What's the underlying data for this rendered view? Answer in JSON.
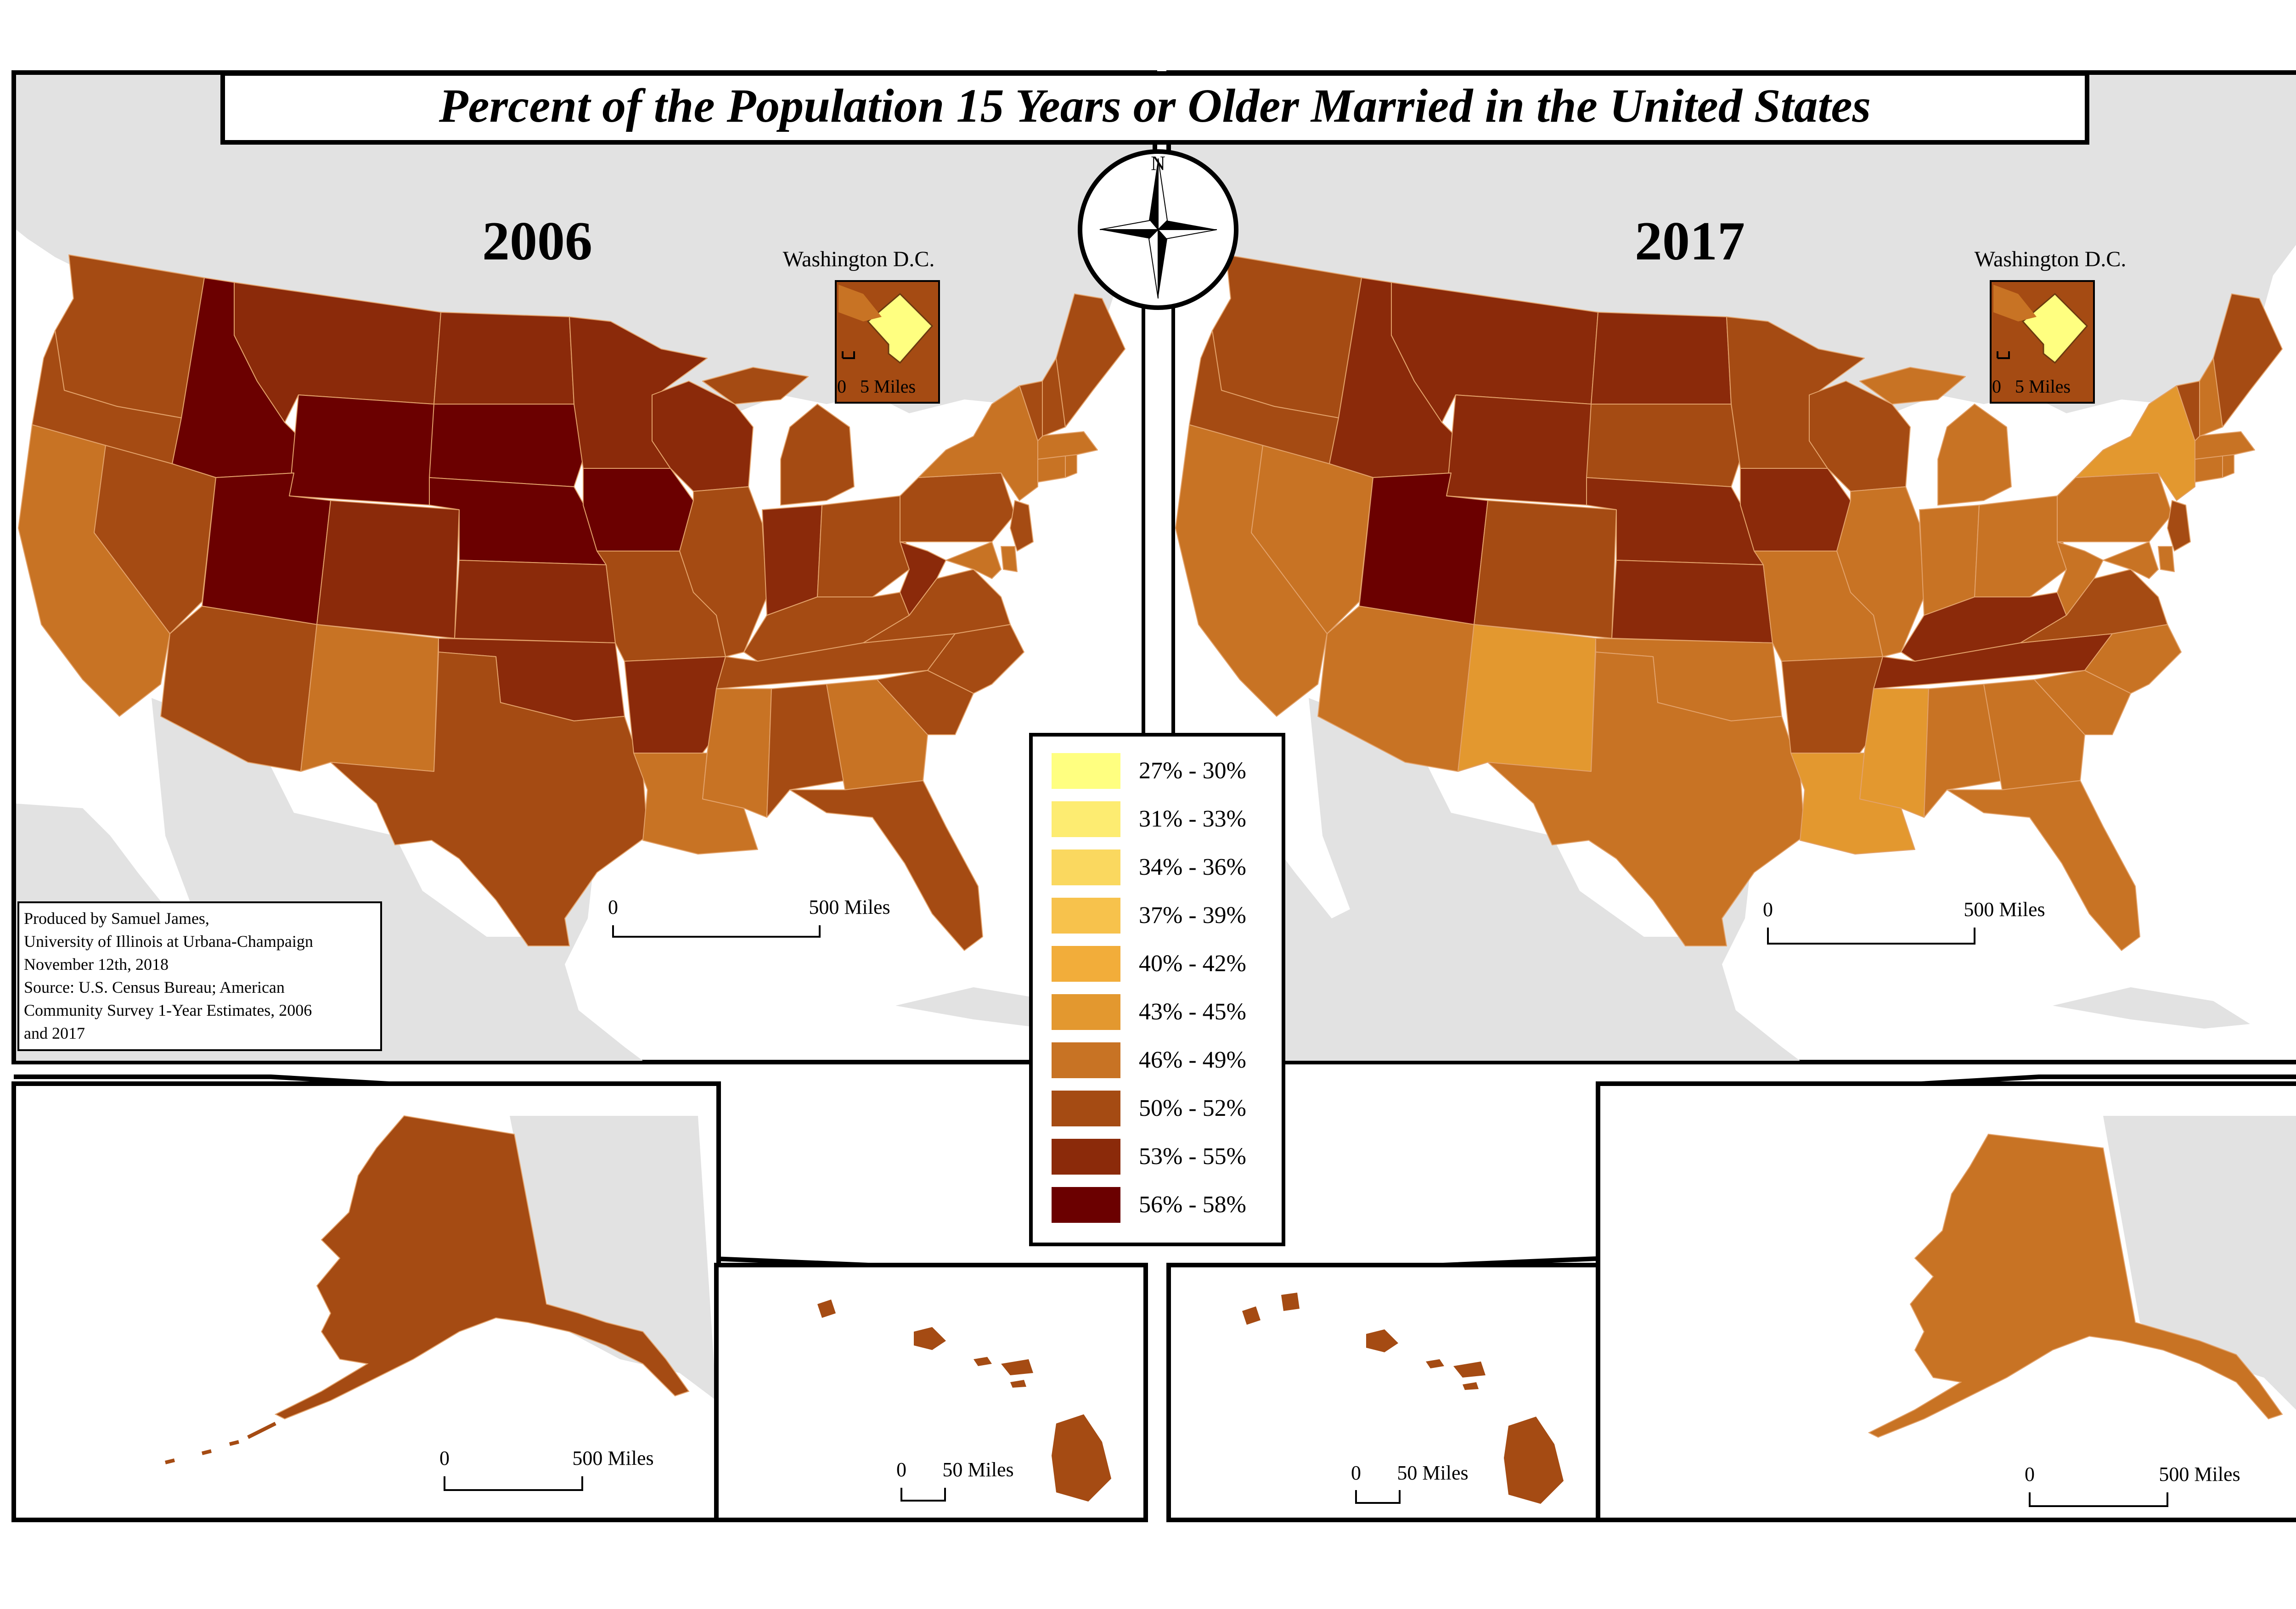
{
  "title": "Percent of the Population 15 Years or Older Married in the United States",
  "colors": {
    "ocean": "#ffffff",
    "land_bg": "#e2e2e2",
    "frame": "#000000",
    "state_border": "#e3a26a"
  },
  "maps": {
    "left": {
      "year": "2006",
      "dc_label": "Washington D.C.",
      "dc_scale": "0   5 Miles",
      "scale_zero": "0",
      "scale_label": "500 Miles",
      "alaska_scale_zero": "0",
      "alaska_scale_label": "500 Miles",
      "hawaii_scale_zero": "0",
      "hawaii_scale_label": "50 Miles",
      "dc_value_class": "27% - 30%",
      "dc_surround_class": "50% - 52%",
      "alaska_class": "50% - 52%",
      "hawaii_class": "50% - 52%"
    },
    "right": {
      "year": "2017",
      "dc_label": "Washington D.C.",
      "dc_scale": "0   5 Miles",
      "scale_zero": "0",
      "scale_label": "500 Miles",
      "alaska_scale_zero": "0",
      "alaska_scale_label": "500 Miles",
      "hawaii_scale_zero": "0",
      "hawaii_scale_label": "50 Miles",
      "dc_value_class": "27% - 30%",
      "dc_surround_class": "50% - 52%",
      "alaska_class": "46% - 49%",
      "hawaii_class": "50% - 52%"
    }
  },
  "compass": {
    "north": "N"
  },
  "credits": {
    "lines": [
      "Produced by Samuel James,",
      "University of Illinois at Urbana-Champaign",
      "November 12th, 2018",
      "Source:  U.S. Census Bureau; American",
      "Community Survey 1-Year Estimates, 2006",
      "and 2017"
    ]
  },
  "legend": [
    {
      "label": "27% - 30%",
      "color": "#ffff80"
    },
    {
      "label": "31% - 33%",
      "color": "#fdec71"
    },
    {
      "label": "34% - 36%",
      "color": "#fad85f"
    },
    {
      "label": "37% - 39%",
      "color": "#f7c24c"
    },
    {
      "label": "40% - 42%",
      "color": "#f2ad3a"
    },
    {
      "label": "43% - 45%",
      "color": "#e3982f"
    },
    {
      "label": "46% - 49%",
      "color": "#c87324"
    },
    {
      "label": "50% - 52%",
      "color": "#a54b13"
    },
    {
      "label": "53% - 55%",
      "color": "#8b2a0a"
    },
    {
      "label": "56% - 58%",
      "color": "#6b0000"
    }
  ]
}
